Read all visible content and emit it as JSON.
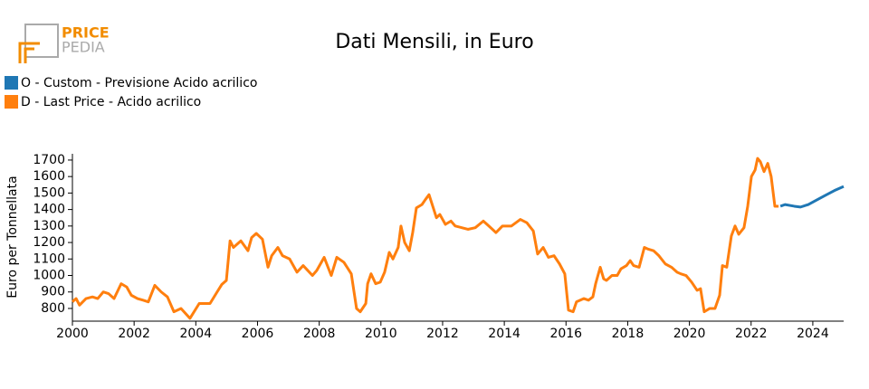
{
  "logo": {
    "line1": "PRICE",
    "line2": "PEDIA"
  },
  "chart_data": {
    "type": "line",
    "title": "Dati Mensili, in Euro",
    "y_label": "Euro per Tonnellata",
    "legend": "top-left",
    "xlim": [
      2000,
      2025
    ],
    "xticks": [
      2000,
      2002,
      2004,
      2006,
      2008,
      2010,
      2012,
      2014,
      2016,
      2018,
      2020,
      2022,
      2024
    ],
    "ylim": [
      723,
      1738
    ],
    "yticks": [
      800,
      900,
      1000,
      1100,
      1200,
      1300,
      1400,
      1500,
      1600,
      1700
    ],
    "series": [
      {
        "name": "O - Custom - Previsione Acido acrilico",
        "color": "#1f77b4",
        "x": [
          2022.95,
          2023.1,
          2023.4,
          2023.6,
          2023.85,
          2024.1,
          2024.4,
          2024.7,
          2025.0
        ],
        "values": [
          1420,
          1430,
          1420,
          1415,
          1430,
          1455,
          1485,
          1515,
          1540
        ]
      },
      {
        "name": "D - Last Price - Acido acrilico",
        "color": "#ff7f0e",
        "x": [
          2000.0,
          2000.12,
          2000.23,
          2000.44,
          2000.65,
          2000.82,
          2001.0,
          2001.17,
          2001.35,
          2001.58,
          2001.76,
          2001.91,
          2002.11,
          2002.29,
          2002.46,
          2002.67,
          2002.88,
          2003.08,
          2003.29,
          2003.52,
          2003.81,
          2004.11,
          2004.46,
          2004.69,
          2004.84,
          2004.99,
          2005.11,
          2005.22,
          2005.46,
          2005.69,
          2005.81,
          2005.96,
          2006.16,
          2006.34,
          2006.46,
          2006.66,
          2006.81,
          2007.04,
          2007.28,
          2007.48,
          2007.78,
          2007.92,
          2008.16,
          2008.39,
          2008.57,
          2008.8,
          2009.04,
          2009.21,
          2009.33,
          2009.51,
          2009.57,
          2009.68,
          2009.83,
          2009.98,
          2010.12,
          2010.27,
          2010.39,
          2010.56,
          2010.65,
          2010.77,
          2010.92,
          2011.03,
          2011.15,
          2011.33,
          2011.44,
          2011.56,
          2011.68,
          2011.8,
          2011.91,
          2012.09,
          2012.27,
          2012.41,
          2012.62,
          2012.82,
          2013.06,
          2013.32,
          2013.5,
          2013.73,
          2013.94,
          2014.23,
          2014.52,
          2014.73,
          2014.94,
          2015.08,
          2015.26,
          2015.43,
          2015.61,
          2015.79,
          2015.96,
          2016.08,
          2016.23,
          2016.34,
          2016.58,
          2016.73,
          2016.87,
          2016.96,
          2017.11,
          2017.22,
          2017.31,
          2017.49,
          2017.66,
          2017.78,
          2017.96,
          2018.08,
          2018.19,
          2018.37,
          2018.54,
          2018.66,
          2018.84,
          2019.01,
          2019.22,
          2019.42,
          2019.6,
          2019.72,
          2019.89,
          2020.07,
          2020.25,
          2020.36,
          2020.48,
          2020.66,
          2020.83,
          2020.98,
          2021.07,
          2021.21,
          2021.36,
          2021.48,
          2021.6,
          2021.77,
          2021.89,
          2022.01,
          2022.13,
          2022.21,
          2022.3,
          2022.42,
          2022.54,
          2022.65,
          2022.77,
          2022.89
        ],
        "values": [
          840,
          860,
          820,
          860,
          870,
          860,
          900,
          890,
          860,
          950,
          930,
          880,
          860,
          850,
          840,
          940,
          900,
          870,
          780,
          800,
          740,
          830,
          830,
          900,
          945,
          970,
          1210,
          1170,
          1210,
          1150,
          1230,
          1255,
          1220,
          1050,
          1120,
          1170,
          1120,
          1100,
          1020,
          1060,
          1000,
          1030,
          1110,
          1000,
          1110,
          1080,
          1010,
          800,
          780,
          830,
          950,
          1010,
          950,
          960,
          1020,
          1140,
          1100,
          1170,
          1300,
          1200,
          1150,
          1260,
          1410,
          1430,
          1460,
          1490,
          1420,
          1350,
          1370,
          1310,
          1330,
          1300,
          1290,
          1280,
          1290,
          1330,
          1300,
          1260,
          1300,
          1300,
          1340,
          1320,
          1270,
          1130,
          1170,
          1110,
          1120,
          1070,
          1010,
          790,
          780,
          840,
          860,
          850,
          870,
          950,
          1050,
          980,
          970,
          1000,
          1000,
          1040,
          1060,
          1090,
          1060,
          1050,
          1170,
          1160,
          1150,
          1120,
          1070,
          1050,
          1020,
          1010,
          1000,
          960,
          910,
          920,
          780,
          800,
          800,
          880,
          1060,
          1050,
          1240,
          1300,
          1250,
          1290,
          1420,
          1600,
          1640,
          1710,
          1690,
          1630,
          1680,
          1600,
          1420,
          1420
        ]
      }
    ]
  }
}
